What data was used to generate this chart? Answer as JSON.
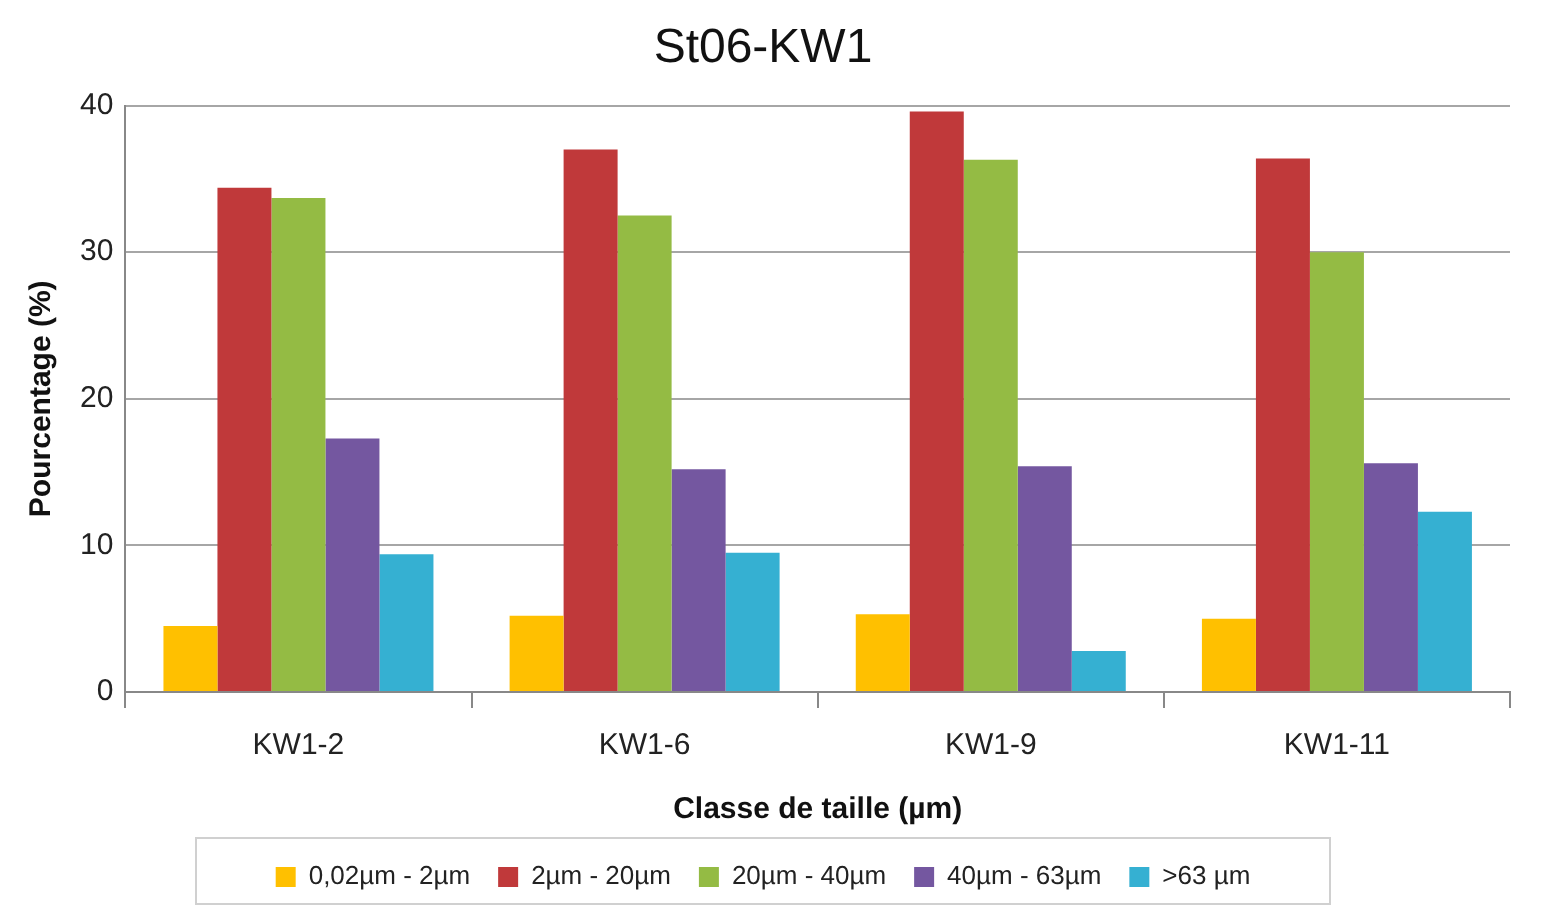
{
  "chart_data": {
    "type": "bar",
    "title": "St06-KW1",
    "xlabel": "Classe de taille (µm)",
    "ylabel": "Pourcentage (%)",
    "categories": [
      "KW1-2",
      "KW1-6",
      "KW1-9",
      "KW1-11"
    ],
    "series": [
      {
        "name": "0,02µm - 2µm",
        "color": "#ffc000",
        "values": [
          4.5,
          5.2,
          5.3,
          5.0
        ]
      },
      {
        "name": "2µm - 20µm",
        "color": "#c0393a",
        "values": [
          34.4,
          37.0,
          39.6,
          36.4
        ]
      },
      {
        "name": "20µm - 40µm",
        "color": "#94bb44",
        "values": [
          33.7,
          32.5,
          36.3,
          30.0
        ]
      },
      {
        "name": "40µm - 63µm",
        "color": "#7457a0",
        "values": [
          17.3,
          15.2,
          15.4,
          15.6
        ]
      },
      {
        "name": ">63 µm",
        "color": "#35b0d2",
        "values": [
          9.4,
          9.5,
          2.8,
          12.3
        ]
      }
    ],
    "ylim": [
      0,
      40
    ],
    "yticks": [
      0,
      10,
      20,
      30,
      40
    ],
    "grid": "y",
    "legend": "bottom"
  }
}
